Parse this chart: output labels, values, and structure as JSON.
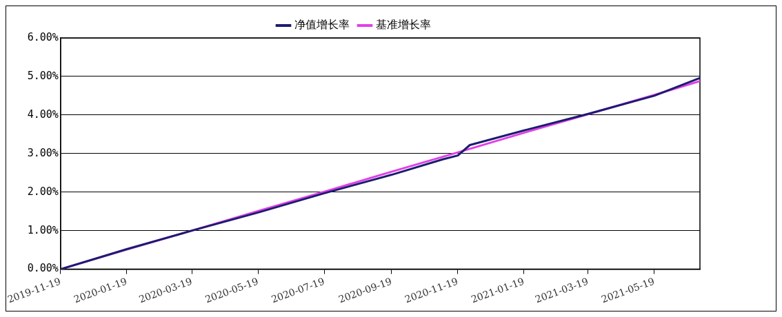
{
  "chart_data": {
    "type": "line",
    "x": [
      "2019-11-19",
      "2020-01-19",
      "2020-03-19",
      "2020-05-19",
      "2020-07-19",
      "2020-09-19",
      "2020-11-05",
      "2020-11-19",
      "2020-11-30",
      "2021-01-19",
      "2021-03-19",
      "2021-05-19",
      "2021-06-30"
    ],
    "series": [
      {
        "name": "净值增长率",
        "color": "#1c1c70",
        "values": [
          0,
          0.52,
          1.0,
          1.47,
          1.97,
          2.45,
          2.85,
          2.95,
          3.22,
          3.6,
          4.03,
          4.5,
          4.96
        ]
      },
      {
        "name": "基准增长率",
        "color": "#e040e8",
        "x": [
          "2019-11-19",
          "2020-01-19",
          "2020-03-19",
          "2020-05-19",
          "2020-07-19",
          "2020-09-19",
          "2020-11-19",
          "2021-01-19",
          "2021-03-19",
          "2021-05-19",
          "2021-06-30"
        ],
        "values": [
          0,
          0.51,
          1.0,
          1.51,
          2.01,
          2.53,
          3.03,
          3.54,
          4.02,
          4.52,
          4.88
        ]
      }
    ],
    "xlim": [
      "2019-11-19",
      "2021-06-30"
    ],
    "xticks": [
      "2019-11-19",
      "2020-01-19",
      "2020-03-19",
      "2020-05-19",
      "2020-07-19",
      "2020-09-19",
      "2020-11-19",
      "2021-01-19",
      "2021-03-19",
      "2021-05-19"
    ],
    "ylim": [
      0,
      6
    ],
    "yticks": [
      {
        "value": 0,
        "label": "0.00%"
      },
      {
        "value": 1,
        "label": "1.00%"
      },
      {
        "value": 2,
        "label": "2.00%"
      },
      {
        "value": 3,
        "label": "3.00%"
      },
      {
        "value": 4,
        "label": "4.00%"
      },
      {
        "value": 5,
        "label": "5.00%"
      },
      {
        "value": 6,
        "label": "6.00%"
      }
    ],
    "grid": "y",
    "legend": "top",
    "marker": "none",
    "line_style": "solid"
  }
}
